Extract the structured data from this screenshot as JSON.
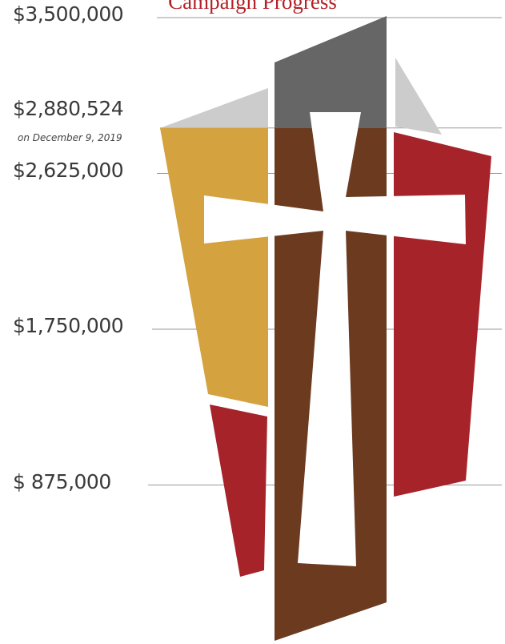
{
  "chart_data": {
    "type": "area",
    "title": "Campaign Progress",
    "y_ticks": [
      {
        "value": 3500000,
        "label": "$3,500,000"
      },
      {
        "value": 2625000,
        "label": "$2,625,000"
      },
      {
        "value": 1750000,
        "label": "$1,750,000"
      },
      {
        "value": 875000,
        "label": "$ 875,000"
      }
    ],
    "ylim": [
      0,
      3500000
    ],
    "current": {
      "value": 2880524,
      "label": "$2,880,524",
      "date": "on December 9, 2019"
    },
    "grid": true
  },
  "colors": {
    "filled_gold": "#d4a23f",
    "filled_brown": "#6b3a1f",
    "filled_red": "#a6232a",
    "unfilled_gray": "#cccccc",
    "unfilled_dark": "#666666",
    "grid": "#9a9a9a",
    "title": "#b52025"
  },
  "icons": [
    "cross-icon"
  ]
}
